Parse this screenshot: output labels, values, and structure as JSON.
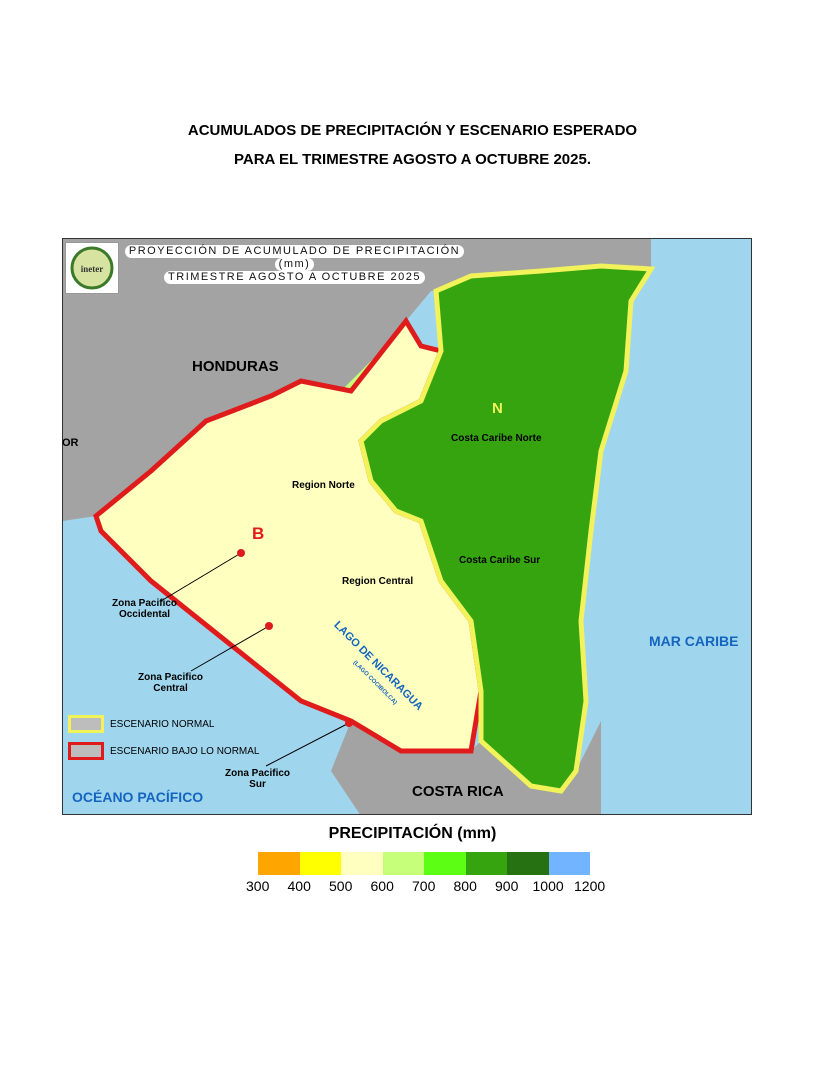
{
  "title_line1": "ACUMULADOS DE PRECIPITACIÓN Y ESCENARIO ESPERADO",
  "title_line2": "PARA EL TRIMESTRE AGOSTO A OCTUBRE 2025.",
  "map": {
    "header": [
      "PROYECCIÓN DE ACUMULADO DE PRECIPITACIÓN",
      "(mm)",
      "TRIMESTRE AGOSTO A OCTUBRE 2025"
    ],
    "logo_text": "ineter",
    "labels": {
      "honduras": "HONDURAS",
      "costa_rica": "COSTA RICA",
      "oceano": "OCÉANO PACÍFICO",
      "mar": "MAR CARIBE",
      "lago": "LAGO DE NICARAGUA",
      "lago_sub": "(LAGO COCIBOLCA)",
      "or": "OR",
      "region_norte": "Region Norte",
      "region_central": "Region Central",
      "caribe_norte": "Costa Caribe Norte",
      "caribe_sur": "Costa Caribe Sur",
      "zona_occ": [
        "Zona Pacifico",
        "Occidental"
      ],
      "zona_cen": [
        "Zona Pacifico",
        "Central"
      ],
      "zona_sur": [
        "Zona Pacifico",
        "Sur"
      ],
      "marker_n": "N",
      "marker_b": "B"
    },
    "legend": [
      {
        "label": "ESCENARIO NORMAL",
        "color": "#f2f25a"
      },
      {
        "label": "ESCENARIO BAJO LO NORMAL",
        "color": "#e01b1b"
      }
    ]
  },
  "scale": {
    "title": "PRECIPITACIÓN (mm)",
    "colors": [
      "#ffa500",
      "#ffff00",
      "#ffffc0",
      "#c6ff7a",
      "#5cff14",
      "#35a40f",
      "#267212",
      "#72b4ff"
    ],
    "ticks": [
      "300",
      "400",
      "500",
      "600",
      "700",
      "800",
      "900",
      "1000",
      "1200"
    ]
  }
}
